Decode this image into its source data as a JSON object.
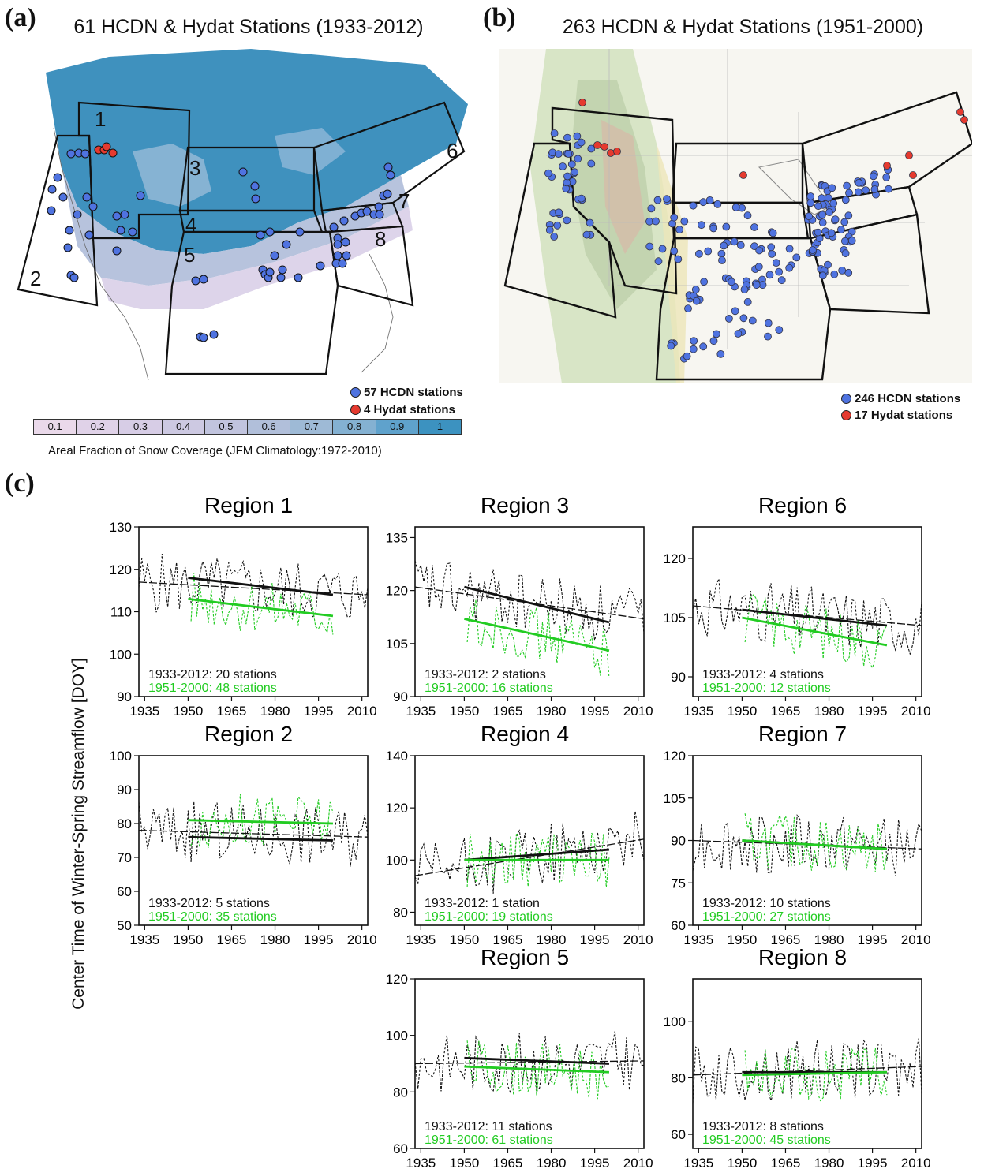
{
  "panel_a": {
    "letter": "(a)",
    "title": "61 HCDN & Hydat Stations (1933-2012)",
    "region_numbers": [
      "1",
      "2",
      "3",
      "4",
      "5",
      "6",
      "7",
      "8"
    ],
    "legend": [
      {
        "label": "57 HCDN stations",
        "color": "#4f73e0"
      },
      {
        "label": "4 Hydat stations",
        "color": "#e53a2f"
      }
    ],
    "colorbar": {
      "ticks": [
        "0.1",
        "0.2",
        "0.3",
        "0.4",
        "0.5",
        "0.6",
        "0.7",
        "0.8",
        "0.9",
        "1"
      ],
      "colors": [
        "#ead9ea",
        "#e0d2e8",
        "#d7cde6",
        "#cdc9e2",
        "#c1c4de",
        "#b1bfda",
        "#9ebad6",
        "#84b1d2",
        "#5fa2cc",
        "#3c92c0"
      ],
      "caption": "Areal Fraction of Snow Coverage (JFM Climatology:1972-2010)"
    }
  },
  "panel_b": {
    "letter": "(b)",
    "title": "263 HCDN & Hydat Stations (1951-2000)",
    "legend": [
      {
        "label": "246 HCDN stations",
        "color": "#4f73e0"
      },
      {
        "label": "17 Hydat stations",
        "color": "#e53a2f"
      }
    ]
  },
  "panel_c": {
    "letter": "(c)",
    "ylabel": "Center Time of Winter-Spring Streamflow [DOY]"
  },
  "chart_data": [
    {
      "type": "line",
      "title": "Region 1",
      "xticks": [
        "1935",
        "1950",
        "1965",
        "1980",
        "1995",
        "2010"
      ],
      "xlim": [
        1933,
        2012
      ],
      "ylim": [
        90,
        130
      ],
      "yticks": [
        "90",
        "100",
        "110",
        "120",
        "130"
      ],
      "series": [
        {
          "name": "1933-2012: 20 stations",
          "color": "#111111",
          "trend": {
            "x": [
              1950,
              2000
            ],
            "y": [
              118,
              114
            ]
          },
          "longterm": {
            "x": [
              1933,
              2012
            ],
            "y": [
              117,
              114
            ]
          }
        },
        {
          "name": "1951-2000: 48 stations",
          "color": "#22cc22",
          "trend": {
            "x": [
              1950,
              2000
            ],
            "y": [
              113,
              109
            ]
          }
        }
      ]
    },
    {
      "type": "line",
      "title": "Region 3",
      "xticks": [
        "1935",
        "1950",
        "1965",
        "1980",
        "1995",
        "2010"
      ],
      "xlim": [
        1933,
        2012
      ],
      "ylim": [
        90,
        138
      ],
      "yticks": [
        "90",
        "105",
        "120",
        "135"
      ],
      "series": [
        {
          "name": "1933-2012: 2 stations",
          "color": "#111111",
          "trend": {
            "x": [
              1950,
              2000
            ],
            "y": [
              121,
              111
            ]
          },
          "longterm": {
            "x": [
              1933,
              2012
            ],
            "y": [
              121,
              112
            ]
          }
        },
        {
          "name": "1951-2000: 16 stations",
          "color": "#22cc22",
          "trend": {
            "x": [
              1950,
              2000
            ],
            "y": [
              112,
              103
            ]
          }
        }
      ]
    },
    {
      "type": "line",
      "title": "Region 6",
      "xticks": [
        "1935",
        "1950",
        "1965",
        "1980",
        "1995",
        "2010"
      ],
      "xlim": [
        1933,
        2012
      ],
      "ylim": [
        85,
        128
      ],
      "yticks": [
        "90",
        "105",
        "120"
      ],
      "series": [
        {
          "name": "1933-2012: 4 stations",
          "color": "#111111",
          "trend": {
            "x": [
              1950,
              2000
            ],
            "y": [
              107,
              103
            ]
          },
          "longterm": {
            "x": [
              1933,
              2012
            ],
            "y": [
              108,
              103
            ]
          }
        },
        {
          "name": "1951-2000: 12 stations",
          "color": "#22cc22",
          "trend": {
            "x": [
              1950,
              2000
            ],
            "y": [
              105,
              98
            ]
          }
        }
      ]
    },
    {
      "type": "line",
      "title": "Region 2",
      "xticks": [
        "1935",
        "1950",
        "1965",
        "1980",
        "1995",
        "2010"
      ],
      "xlim": [
        1933,
        2012
      ],
      "ylim": [
        50,
        100
      ],
      "yticks": [
        "50",
        "60",
        "70",
        "80",
        "90",
        "100"
      ],
      "series": [
        {
          "name": "1933-2012: 5 stations",
          "color": "#111111",
          "trend": {
            "x": [
              1950,
              2000
            ],
            "y": [
              76,
              75
            ]
          },
          "longterm": {
            "x": [
              1933,
              2012
            ],
            "y": [
              78,
              76
            ]
          }
        },
        {
          "name": "1951-2000: 35 stations",
          "color": "#22cc22",
          "trend": {
            "x": [
              1950,
              2000
            ],
            "y": [
              81,
              80
            ]
          }
        }
      ]
    },
    {
      "type": "line",
      "title": "Region 4",
      "xticks": [
        "1935",
        "1950",
        "1965",
        "1980",
        "1995",
        "2010"
      ],
      "xlim": [
        1933,
        2012
      ],
      "ylim": [
        75,
        140
      ],
      "yticks": [
        "80",
        "100",
        "120",
        "140"
      ],
      "series": [
        {
          "name": "1933-2012: 1 station",
          "color": "#111111",
          "trend": {
            "x": [
              1950,
              2000
            ],
            "y": [
              100,
              104
            ]
          },
          "longterm": {
            "x": [
              1933,
              2012
            ],
            "y": [
              94,
              108
            ]
          }
        },
        {
          "name": "1951-2000: 19 stations",
          "color": "#22cc22",
          "trend": {
            "x": [
              1950,
              2000
            ],
            "y": [
              100,
              100
            ]
          }
        }
      ]
    },
    {
      "type": "line",
      "title": "Region 7",
      "xticks": [
        "1935",
        "1950",
        "1965",
        "1980",
        "1995",
        "2010"
      ],
      "xlim": [
        1933,
        2012
      ],
      "ylim": [
        60,
        120
      ],
      "yticks": [
        "60",
        "75",
        "90",
        "105",
        "120"
      ],
      "series": [
        {
          "name": "1933-2012: 10 stations",
          "color": "#111111",
          "trend": {
            "x": [
              1950,
              2000
            ],
            "y": [
              90,
              87
            ]
          },
          "longterm": {
            "x": [
              1933,
              2012
            ],
            "y": [
              90,
              87
            ]
          }
        },
        {
          "name": "1951-2000: 27 stations",
          "color": "#22cc22",
          "trend": {
            "x": [
              1950,
              2000
            ],
            "y": [
              90,
              87
            ]
          }
        }
      ]
    },
    {
      "type": "line",
      "title": "Region 5",
      "xticks": [
        "1935",
        "1950",
        "1965",
        "1980",
        "1995",
        "2010"
      ],
      "xlim": [
        1933,
        2012
      ],
      "ylim": [
        60,
        120
      ],
      "yticks": [
        "60",
        "80",
        "100",
        "120"
      ],
      "series": [
        {
          "name": "1933-2012: 11 stations",
          "color": "#111111",
          "trend": {
            "x": [
              1950,
              2000
            ],
            "y": [
              92,
              90
            ]
          },
          "longterm": {
            "x": [
              1933,
              2012
            ],
            "y": [
              90,
              91
            ]
          }
        },
        {
          "name": "1951-2000: 61 stations",
          "color": "#22cc22",
          "trend": {
            "x": [
              1950,
              2000
            ],
            "y": [
              89,
              87
            ]
          }
        }
      ]
    },
    {
      "type": "line",
      "title": "Region 8",
      "xticks": [
        "1935",
        "1950",
        "1965",
        "1980",
        "1995",
        "2010"
      ],
      "xlim": [
        1933,
        2012
      ],
      "ylim": [
        55,
        115
      ],
      "yticks": [
        "60",
        "80",
        "100"
      ],
      "series": [
        {
          "name": "1933-2012: 8 stations",
          "color": "#111111",
          "trend": {
            "x": [
              1950,
              2000
            ],
            "y": [
              82,
              82
            ]
          },
          "longterm": {
            "x": [
              1933,
              2012
            ],
            "y": [
              81,
              84
            ]
          }
        },
        {
          "name": "1951-2000: 45 stations",
          "color": "#22cc22",
          "trend": {
            "x": [
              1950,
              2000
            ],
            "y": [
              81,
              82
            ]
          }
        }
      ]
    }
  ]
}
